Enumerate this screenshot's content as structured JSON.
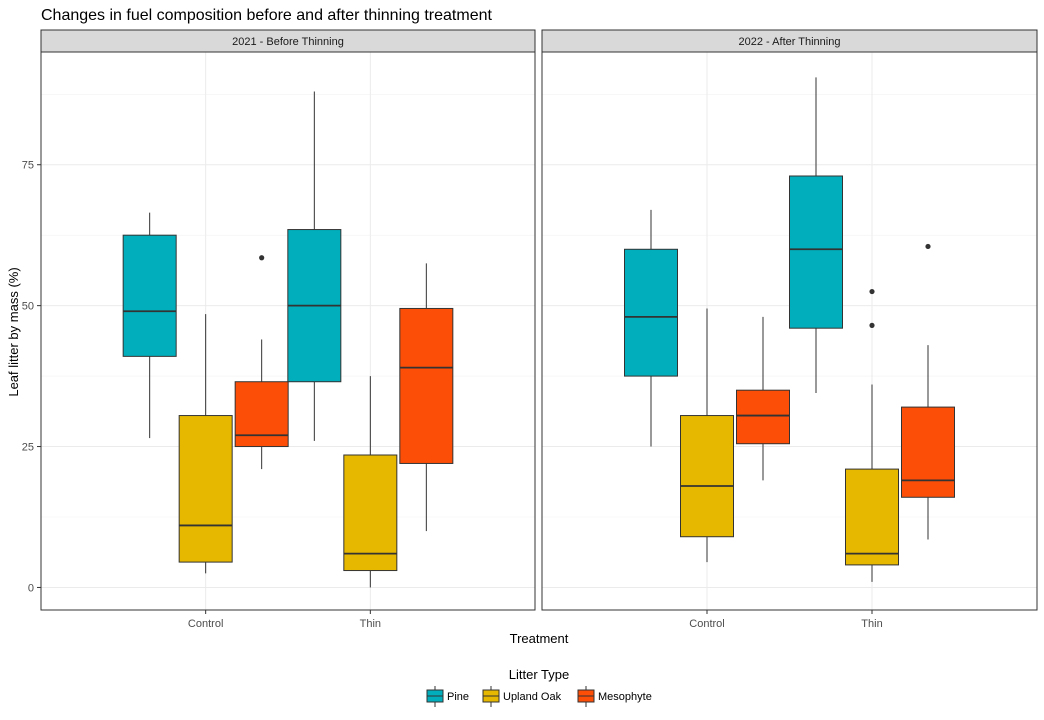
{
  "chart_data": {
    "type": "boxplot",
    "title": "Changes in fuel composition before and after thinning treatment",
    "xlabel": "Treatment",
    "ylabel": "Leaf litter by mass (%)",
    "ylim": [
      -4,
      95
    ],
    "yticks": [
      0,
      25,
      50,
      75
    ],
    "categories": [
      "Control",
      "Thin"
    ],
    "legend": {
      "title": "Litter Type",
      "position": "bottom",
      "entries": [
        {
          "name": "Pine",
          "color": "#00AFBB"
        },
        {
          "name": "Upland Oak",
          "color": "#E7B800"
        },
        {
          "name": "Mesophyte",
          "color": "#FC4E07"
        }
      ]
    },
    "grid": true,
    "panels": [
      {
        "label": "2021 - Before Thinning",
        "groups": [
          {
            "category": "Control",
            "boxes": [
              {
                "series": "Pine",
                "min": 26.5,
                "q1": 41,
                "median": 49,
                "q3": 62.5,
                "max": 66.5,
                "outliers": []
              },
              {
                "series": "Upland Oak",
                "min": 2.5,
                "q1": 4.5,
                "median": 11,
                "q3": 30.5,
                "max": 48.5,
                "outliers": []
              },
              {
                "series": "Mesophyte",
                "min": 21,
                "q1": 25,
                "median": 27,
                "q3": 36.5,
                "max": 44,
                "outliers": [
                  58.5
                ]
              }
            ]
          },
          {
            "category": "Thin",
            "boxes": [
              {
                "series": "Pine",
                "min": 26,
                "q1": 36.5,
                "median": 50,
                "q3": 63.5,
                "max": 88,
                "outliers": []
              },
              {
                "series": "Upland Oak",
                "min": 0,
                "q1": 3,
                "median": 6,
                "q3": 23.5,
                "max": 37.5,
                "outliers": []
              },
              {
                "series": "Mesophyte",
                "min": 10,
                "q1": 22,
                "median": 39,
                "q3": 49.5,
                "max": 57.5,
                "outliers": []
              }
            ]
          }
        ]
      },
      {
        "label": "2022 - After Thinning",
        "groups": [
          {
            "category": "Control",
            "boxes": [
              {
                "series": "Pine",
                "min": 25,
                "q1": 37.5,
                "median": 48,
                "q3": 60,
                "max": 67,
                "outliers": []
              },
              {
                "series": "Upland Oak",
                "min": 4.5,
                "q1": 9,
                "median": 18,
                "q3": 30.5,
                "max": 49.5,
                "outliers": []
              },
              {
                "series": "Mesophyte",
                "min": 19,
                "q1": 25.5,
                "median": 30.5,
                "q3": 35,
                "max": 48,
                "outliers": []
              }
            ]
          },
          {
            "category": "Thin",
            "boxes": [
              {
                "series": "Pine",
                "min": 34.5,
                "q1": 46,
                "median": 60,
                "q3": 73,
                "max": 90.5,
                "outliers": []
              },
              {
                "series": "Upland Oak",
                "min": 1,
                "q1": 4,
                "median": 6,
                "q3": 21,
                "max": 36,
                "outliers": [
                  46.5,
                  52.5
                ]
              },
              {
                "series": "Mesophyte",
                "min": 8.5,
                "q1": 16,
                "median": 19,
                "q3": 32,
                "max": 43,
                "outliers": [
                  60.5
                ]
              }
            ]
          }
        ]
      }
    ]
  }
}
